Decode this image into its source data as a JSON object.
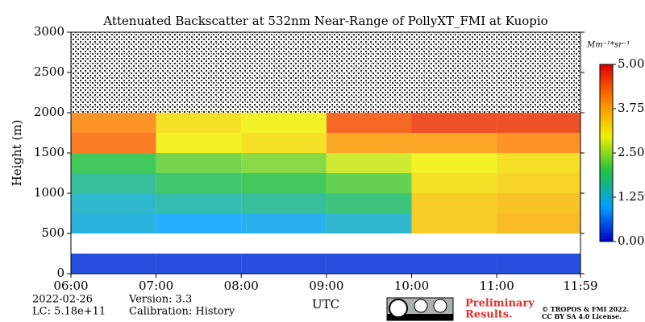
{
  "chart_data": {
    "type": "heatmap",
    "title": "Attenuated Backscatter at 532nm Near-Range of PollyXT_FMI at Kuopio",
    "xlabel": "UTC",
    "ylabel": "Height (m)",
    "xlim": [
      6,
      11.9833
    ],
    "xticks": [
      {
        "value": 6,
        "label": "06:00"
      },
      {
        "value": 7,
        "label": "07:00"
      },
      {
        "value": 8,
        "label": "08:00"
      },
      {
        "value": 9,
        "label": "09:00"
      },
      {
        "value": 10,
        "label": "10:00"
      },
      {
        "value": 11,
        "label": "11:00"
      },
      {
        "value": 11.9833,
        "label": "11:59"
      }
    ],
    "ylim": [
      0,
      3000
    ],
    "yticks": [
      0,
      500,
      1000,
      1500,
      2000,
      2500,
      3000
    ],
    "x_edges": [
      6,
      7,
      8,
      9,
      10,
      11,
      11.9833
    ],
    "y_edges": [
      0,
      250,
      500,
      750,
      1000,
      1250,
      1500,
      1750,
      2000,
      2250,
      2500,
      2750,
      3000
    ],
    "z": [
      [
        0.3,
        0.3,
        0.3,
        0.3,
        0.3,
        0.3
      ],
      [
        null,
        null,
        null,
        null,
        null,
        null
      ],
      [
        1.2,
        1.0,
        1.1,
        1.3,
        3.4,
        3.6
      ],
      [
        1.3,
        1.5,
        1.6,
        1.8,
        3.4,
        3.5
      ],
      [
        1.6,
        1.9,
        2.0,
        2.2,
        3.2,
        3.3
      ],
      [
        2.0,
        2.3,
        2.4,
        2.8,
        3.0,
        3.2
      ],
      [
        4.2,
        3.0,
        3.2,
        3.8,
        3.8,
        4.0
      ],
      [
        4.0,
        3.2,
        3.0,
        4.4,
        4.6,
        4.6
      ],
      [
        null,
        null,
        null,
        null,
        null,
        null
      ],
      [
        null,
        null,
        null,
        null,
        null,
        null
      ],
      [
        null,
        null,
        null,
        null,
        null,
        null
      ],
      [
        null,
        null,
        null,
        null,
        null,
        null
      ]
    ],
    "colormap": [
      "#0000c8",
      "#00a0ff",
      "#20c040",
      "#f0f000",
      "#ff8000",
      "#e00000"
    ],
    "clim": [
      0,
      5
    ],
    "cticks": [
      {
        "value": 0,
        "label": "0.00"
      },
      1.25,
      {
        "value": 2.5,
        "label": "2.50"
      },
      3.75,
      {
        "value": 5,
        "label": "5.00"
      }
    ],
    "colorbar_label": "Mm⁻¹*sr⁻¹",
    "date": "2022-02-26",
    "lc": "LC: 5.18e+11",
    "version": "Version: 3.3",
    "calibration": "Calibration: History",
    "preliminary": "Preliminary",
    "results": "Results.",
    "copyright": "© TROPOS & FMI 2022.",
    "license": "CC BY SA 4.0 License."
  }
}
